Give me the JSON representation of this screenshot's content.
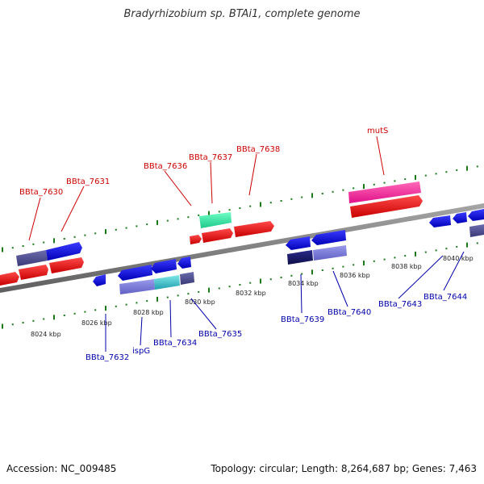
{
  "title": "Bradyrhizobium sp. BTAi1, complete genome",
  "footer": {
    "accession": "Accession: NC_009485",
    "summary": "Topology: circular; Length: 8,264,687 bp; Genes: 7,463"
  },
  "colors": {
    "forward_label": "#cc0000",
    "reverse_label": "#0000aa",
    "tick": "#1a7a1a",
    "backbone": "#888888"
  },
  "scale_labels": [
    "8024 kbp",
    "8026 kbp",
    "8028 kbp",
    "8030 kbp",
    "8032 kbp",
    "8034 kbp",
    "8036 kbp",
    "8038 kbp",
    "8040 kbp"
  ],
  "genes_forward": [
    {
      "name": "BBta_7630"
    },
    {
      "name": "BBta_7631"
    },
    {
      "name": "BBta_7636"
    },
    {
      "name": "BBta_7637"
    },
    {
      "name": "BBta_7638"
    },
    {
      "name": "mutS"
    }
  ],
  "genes_reverse": [
    {
      "name": "BBta_7632"
    },
    {
      "name": "ispG"
    },
    {
      "name": "BBta_7634"
    },
    {
      "name": "BBta_7635"
    },
    {
      "name": "BBta_7639"
    },
    {
      "name": "BBta_7640"
    },
    {
      "name": "BBta_7643"
    },
    {
      "name": "BBta_7644"
    }
  ]
}
